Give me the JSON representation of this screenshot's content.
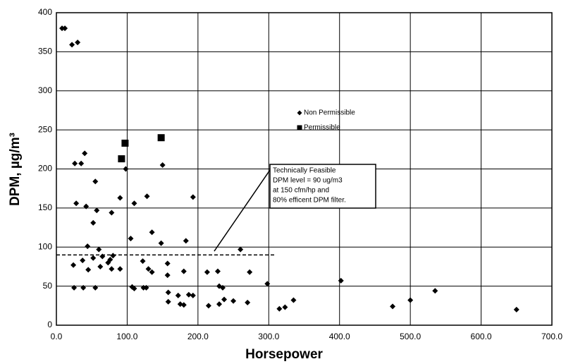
{
  "chart_data": {
    "type": "scatter",
    "x_label": "Horsepower",
    "y_label": "DPM, µg/m³",
    "xlim": [
      0,
      700
    ],
    "xticks": [
      {
        "value": 0,
        "label": "0.0"
      },
      {
        "value": 100,
        "label": "100.0"
      },
      {
        "value": 200,
        "label": "200.0"
      },
      {
        "value": 300,
        "label": "300.0"
      },
      {
        "value": 400,
        "label": "400.0"
      },
      {
        "value": 500,
        "label": "500.0"
      },
      {
        "value": 600,
        "label": "600.0"
      },
      {
        "value": 700,
        "label": "700.0"
      }
    ],
    "ylim": [
      0,
      400
    ],
    "yticks": [
      0,
      50,
      100,
      150,
      200,
      250,
      300,
      350,
      400
    ],
    "grid": true,
    "series": [
      {
        "name": "Non Permissible",
        "color": "#000000",
        "marker": "diamond",
        "x": [
          8,
          12,
          22,
          30,
          26,
          35,
          40,
          28,
          42,
          55,
          57,
          52,
          78,
          90,
          98,
          110,
          150,
          128,
          135,
          105,
          148,
          193,
          183,
          24,
          37,
          44,
          45,
          52,
          60,
          65,
          62,
          73,
          76,
          80,
          78,
          90,
          122,
          130,
          135,
          157,
          157,
          180,
          25,
          38,
          55,
          107,
          110,
          123,
          127,
          158,
          158,
          172,
          175,
          180,
          187,
          193,
          213,
          228,
          230,
          235,
          215,
          230,
          237,
          250,
          260,
          270,
          273,
          298,
          315,
          323,
          335,
          402,
          475,
          500,
          535,
          650
        ],
        "values": [
          380,
          380,
          359,
          362,
          207,
          207,
          220,
          156,
          152,
          184,
          147,
          131,
          144,
          163,
          200,
          156,
          205,
          165,
          119,
          111,
          105,
          164,
          108,
          77,
          83,
          101,
          71,
          86,
          97,
          88,
          75,
          80,
          84,
          89,
          72,
          72,
          82,
          72,
          68,
          79,
          64,
          69,
          48,
          48,
          48,
          49,
          47,
          48,
          48,
          42,
          30,
          38,
          27,
          26,
          39,
          38,
          68,
          69,
          50,
          48,
          25,
          27,
          33,
          31,
          97,
          29,
          68,
          53,
          21,
          23,
          32,
          57,
          24,
          32,
          44,
          20
        ]
      },
      {
        "name": "Permissible",
        "color": "#000000",
        "marker": "square",
        "x": [
          92,
          97,
          148
        ],
        "values": [
          213,
          233,
          240
        ]
      }
    ],
    "reference_line": {
      "value": 90,
      "x_end": 310
    },
    "annotation": {
      "lines": [
        "Technically Feasible",
        "DPM level = 90 ug/m3",
        "at 150 cfm/hp and",
        "80% efficent DPM filter."
      ],
      "x": 220,
      "y": 92
    }
  }
}
